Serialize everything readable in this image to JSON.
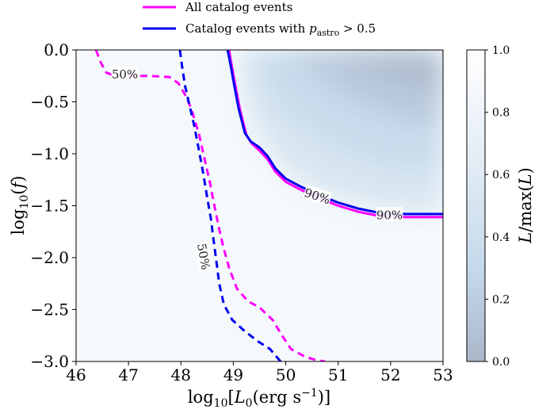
{
  "chart_data": {
    "type": "line",
    "xlabel": "log10[L0(erg s−1)]",
    "ylabel": "log10(f)",
    "xlim": [
      46,
      53
    ],
    "ylim": [
      -3.0,
      0.0
    ],
    "x_ticks": [
      46,
      47,
      48,
      49,
      50,
      51,
      52,
      53
    ],
    "x_tick_labels": [
      "46",
      "47",
      "48",
      "49",
      "50",
      "51",
      "52",
      "53"
    ],
    "y_ticks": [
      0.0,
      -0.5,
      -1.0,
      -1.5,
      -2.0,
      -2.5,
      -3.0
    ],
    "y_tick_labels": [
      "0.0",
      "−0.5",
      "−1.0",
      "−1.5",
      "−2.0",
      "−2.5",
      "−3.0"
    ],
    "grid": false,
    "legend_position": "top",
    "background": "heatmap of normalized likelihood",
    "colorbar": {
      "label": "L/max(L)",
      "range": [
        0.0,
        1.0
      ],
      "ticks": [
        0.0,
        0.2,
        0.4,
        0.6,
        0.8,
        1.0
      ],
      "tick_labels": [
        "0.0",
        "0.2",
        "0.4",
        "0.6",
        "0.8",
        "1.0"
      ],
      "color_low": "#aab7c9",
      "color_high": "#ffffff"
    },
    "series": [
      {
        "name": "All catalog events",
        "color": "#ff00ff",
        "contours": [
          {
            "level_label": "90%",
            "style": "solid",
            "points": [
              [
                48.92,
                0.0
              ],
              [
                48.97,
                -0.15
              ],
              [
                49.04,
                -0.35
              ],
              [
                49.13,
                -0.58
              ],
              [
                49.25,
                -0.82
              ],
              [
                49.35,
                -0.9
              ],
              [
                49.5,
                -0.97
              ],
              [
                49.65,
                -1.05
              ],
              [
                49.8,
                -1.17
              ],
              [
                50.0,
                -1.27
              ],
              [
                50.3,
                -1.35
              ],
              [
                50.6,
                -1.42
              ],
              [
                51.0,
                -1.5
              ],
              [
                51.4,
                -1.56
              ],
              [
                51.8,
                -1.6
              ],
              [
                52.3,
                -1.61
              ],
              [
                53.0,
                -1.61
              ]
            ]
          },
          {
            "level_label": "50%",
            "style": "dashed",
            "points": [
              [
                46.38,
                0.0
              ],
              [
                46.48,
                -0.13
              ],
              [
                46.58,
                -0.22
              ],
              [
                46.75,
                -0.25
              ],
              [
                47.0,
                -0.25
              ],
              [
                47.4,
                -0.25
              ],
              [
                47.78,
                -0.26
              ],
              [
                47.95,
                -0.32
              ],
              [
                48.1,
                -0.45
              ],
              [
                48.2,
                -0.57
              ],
              [
                48.35,
                -0.82
              ],
              [
                48.45,
                -1.05
              ],
              [
                48.55,
                -1.27
              ],
              [
                48.63,
                -1.48
              ],
              [
                48.72,
                -1.7
              ],
              [
                48.81,
                -1.9
              ],
              [
                48.92,
                -2.1
              ],
              [
                49.07,
                -2.3
              ],
              [
                49.28,
                -2.42
              ],
              [
                49.5,
                -2.48
              ],
              [
                49.75,
                -2.6
              ],
              [
                49.93,
                -2.75
              ],
              [
                50.1,
                -2.88
              ],
              [
                50.35,
                -2.95
              ],
              [
                50.6,
                -2.99
              ],
              [
                50.75,
                -3.0
              ]
            ]
          }
        ]
      },
      {
        "name": "Catalog events with p_astro > 0.5",
        "color": "#0000ee",
        "contours": [
          {
            "level_label": "90%",
            "style": "solid",
            "points": [
              [
                48.89,
                0.0
              ],
              [
                48.95,
                -0.15
              ],
              [
                49.02,
                -0.35
              ],
              [
                49.1,
                -0.56
              ],
              [
                49.22,
                -0.8
              ],
              [
                49.33,
                -0.88
              ],
              [
                49.5,
                -0.94
              ],
              [
                49.65,
                -1.02
              ],
              [
                49.8,
                -1.14
              ],
              [
                50.0,
                -1.24
              ],
              [
                50.3,
                -1.32
              ],
              [
                50.6,
                -1.39
              ],
              [
                51.0,
                -1.47
              ],
              [
                51.4,
                -1.53
              ],
              [
                51.8,
                -1.57
              ],
              [
                52.3,
                -1.58
              ],
              [
                53.0,
                -1.58
              ]
            ]
          },
          {
            "level_label": "50%",
            "style": "dashed",
            "points": [
              [
                47.98,
                0.0
              ],
              [
                48.02,
                -0.15
              ],
              [
                48.08,
                -0.35
              ],
              [
                48.14,
                -0.48
              ],
              [
                48.25,
                -0.72
              ],
              [
                48.35,
                -0.98
              ],
              [
                48.43,
                -1.2
              ],
              [
                48.5,
                -1.42
              ],
              [
                48.57,
                -1.62
              ],
              [
                48.62,
                -1.82
              ],
              [
                48.68,
                -2.05
              ],
              [
                48.73,
                -2.25
              ],
              [
                48.82,
                -2.45
              ],
              [
                48.98,
                -2.6
              ],
              [
                49.2,
                -2.7
              ],
              [
                49.45,
                -2.8
              ],
              [
                49.7,
                -2.88
              ],
              [
                49.85,
                -2.97
              ],
              [
                49.9,
                -3.0
              ]
            ]
          }
        ]
      }
    ],
    "annotations": [
      {
        "text": "50%",
        "x": 46.93,
        "y": -0.235,
        "rotation": 0
      },
      {
        "text": "50%",
        "x": 48.43,
        "y": -1.99,
        "rotation": 80
      },
      {
        "text": "90%",
        "x": 50.6,
        "y": -1.41,
        "rotation": 18
      },
      {
        "text": "90%",
        "x": 51.98,
        "y": -1.59,
        "rotation": 0
      }
    ]
  }
}
